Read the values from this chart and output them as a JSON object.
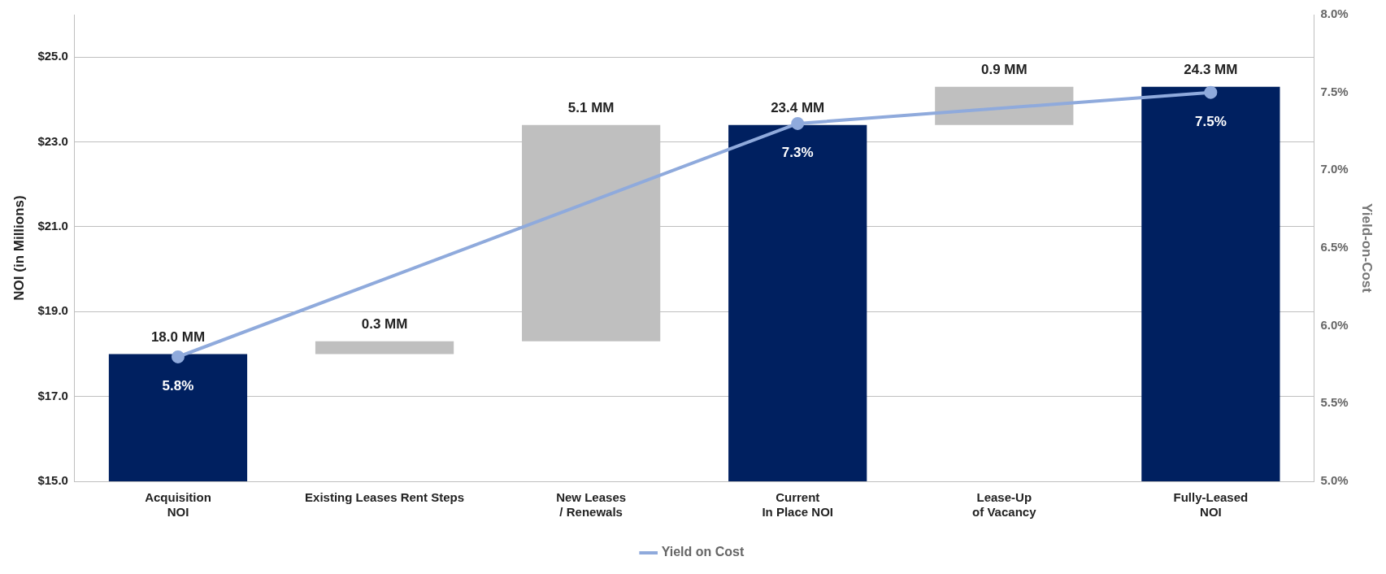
{
  "chart_data": {
    "type": "bar",
    "ylabel": "NOI (in Millions)",
    "y2label": "Yield-on-Cost",
    "categories": [
      "Acquisition\nNOI",
      "Existing Leases Rent Steps",
      "New Leases\n/ Renewals",
      "Current\nIn Place NOI",
      "Lease-Up\nof Vacancy",
      "Fully-Leased\nNOI"
    ],
    "series": [
      {
        "values": [
          18.0,
          0.3,
          5.1,
          23.4,
          0.9,
          24.3
        ],
        "base": [
          null,
          18.0,
          18.3,
          null,
          23.4,
          null
        ],
        "colors": [
          "#002060",
          "#bfbfbf",
          "#bfbfbf",
          "#002060",
          "#bfbfbf",
          "#002060"
        ],
        "value_labels": [
          "18.0 MM",
          "0.3 MM",
          "5.1 MM",
          "23.4 MM",
          "0.9 MM",
          "24.3 MM"
        ]
      },
      {
        "type": "line",
        "name": "Yield on Cost",
        "axis": "y2",
        "color": "#8faadc",
        "marker": "circle",
        "values": [
          5.8,
          null,
          null,
          7.3,
          null,
          7.5
        ],
        "value_labels": [
          "5.8%",
          null,
          null,
          "7.3%",
          null,
          "7.5%"
        ]
      }
    ],
    "ylim": [
      15,
      26
    ],
    "yticks": [
      {
        "value": 15,
        "label": "$15.0"
      },
      {
        "value": 17,
        "label": "$17.0"
      },
      {
        "value": 19,
        "label": "$19.0"
      },
      {
        "value": 21,
        "label": "$21.0"
      },
      {
        "value": 23,
        "label": "$23.0"
      },
      {
        "value": 25,
        "label": "$25.0"
      }
    ],
    "y2lim": [
      5,
      8
    ],
    "y2ticks": [
      {
        "value": 5,
        "label": "5.0%"
      },
      {
        "value": 5.5,
        "label": "5.5%"
      },
      {
        "value": 6,
        "label": "6.0%"
      },
      {
        "value": 6.5,
        "label": "6.5%"
      },
      {
        "value": 7,
        "label": "7.0%"
      },
      {
        "value": 7.5,
        "label": "7.5%"
      },
      {
        "value": 8,
        "label": "8.0%"
      }
    ],
    "grid": "y",
    "legend": "bottom"
  }
}
